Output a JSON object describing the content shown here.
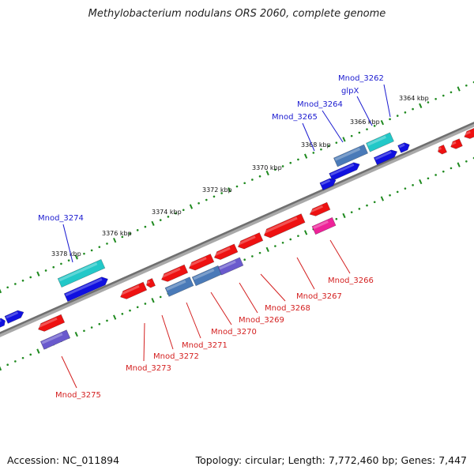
{
  "title": "Methylobacterium nodulans ORS 2060, complete genome",
  "accession": "Accession: NC_011894",
  "topology": "Topology: circular; Length: 7,772,460 bp; Genes: 7,447",
  "scale_labels": [
    {
      "text": "3364 kbp",
      "kbp": 3364
    },
    {
      "text": "3366 kbp",
      "kbp": 3366
    },
    {
      "text": "3368 kbp",
      "kbp": 3368
    },
    {
      "text": "3370 kbp",
      "kbp": 3370
    },
    {
      "text": "3372 kbp",
      "kbp": 3372
    },
    {
      "text": "3374 kbp",
      "kbp": 3374
    },
    {
      "text": "3376 kbp",
      "kbp": 3376
    },
    {
      "text": "3378 kbp",
      "kbp": 3378
    }
  ],
  "genes_forward": [
    {
      "name": "Mnod_3262",
      "color": "#1a1ad0"
    },
    {
      "name": "glpX",
      "color": "#1a1ad0"
    },
    {
      "name": "Mnod_3264",
      "color": "#1a1ad0"
    },
    {
      "name": "Mnod_3265",
      "color": "#1a1ad0"
    },
    {
      "name": "Mnod_3274",
      "color": "#1a1ad0"
    }
  ],
  "genes_reverse": [
    {
      "name": "Mnod_3266",
      "color": "#d42020"
    },
    {
      "name": "Mnod_3267",
      "color": "#d42020"
    },
    {
      "name": "Mnod_3268",
      "color": "#d42020"
    },
    {
      "name": "Mnod_3269",
      "color": "#d42020"
    },
    {
      "name": "Mnod_3270",
      "color": "#d42020"
    },
    {
      "name": "Mnod_3271",
      "color": "#d42020"
    },
    {
      "name": "Mnod_3272",
      "color": "#d42020"
    },
    {
      "name": "Mnod_3273",
      "color": "#d42020"
    },
    {
      "name": "Mnod_3275",
      "color": "#d42020"
    }
  ],
  "colors": {
    "backbone": "#808080",
    "tick_ring": "#1f8a1f",
    "forward_cds": "#1010e0",
    "reverse_cds": "#ee1111",
    "trna_cyan": "#22c8c8",
    "pink": "#ee2299",
    "steel_blue": "#4a7ab8",
    "purple": "#6a5acd",
    "forward_label": "#1a1ad0",
    "reverse_label": "#d42020"
  }
}
